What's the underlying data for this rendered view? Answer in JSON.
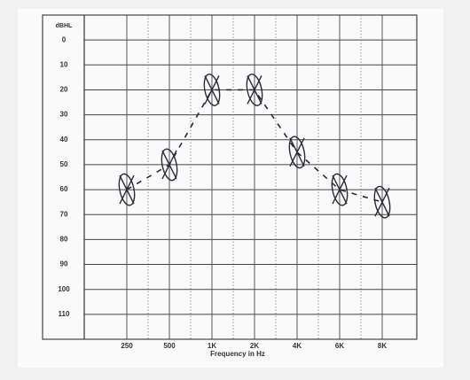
{
  "chart_data": {
    "type": "line",
    "y_label": "dBHL",
    "x_label": "Frequency in Hz",
    "categories": [
      "250",
      "500",
      "1K",
      "2K",
      "4K",
      "6K",
      "8K"
    ],
    "values": [
      60,
      50,
      20,
      20,
      45,
      60,
      65
    ],
    "color": "#2a2a3a",
    "ylim": [
      -10,
      120
    ],
    "y_inverted": true,
    "yticks": [
      0,
      10,
      20,
      30,
      40,
      50,
      60,
      70,
      80,
      90,
      100,
      110
    ],
    "grid": true
  }
}
